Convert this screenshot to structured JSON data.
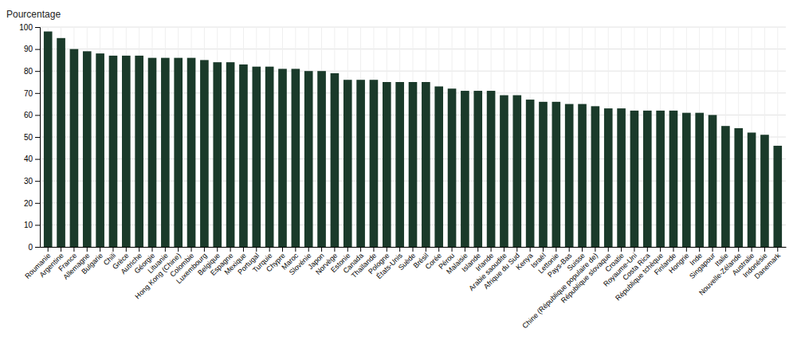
{
  "chart_data": {
    "type": "bar",
    "y_label": "Pourcentage",
    "categories": [
      "Roumanie",
      "Argentine",
      "France",
      "Allemagne",
      "Bulgarie",
      "Chili",
      "Grèce",
      "Autriche",
      "Géorgie",
      "Lituanie",
      "Hong Kong (Chine)",
      "Colombie",
      "Luxembourg",
      "Belgique",
      "Espagne",
      "Mexique",
      "Portugal",
      "Turquie",
      "Chypre",
      "Maroc",
      "Slovénie",
      "Japon",
      "Norvège",
      "Estonie",
      "Canada",
      "Thaïlande",
      "Pologne",
      "États-Unis",
      "Suède",
      "Brésil",
      "Corée",
      "Pérou",
      "Malaisie",
      "Islande",
      "Irlande",
      "Arabie saoudite",
      "Afrique du Sud",
      "Kenya",
      "Israël",
      "Lettonie",
      "Pays-Bas",
      "Suisse",
      "Chine (République populaire de)",
      "République slovaque",
      "Croatie",
      "Royaume-Uni",
      "Costa Rica",
      "République tchèque",
      "Finlande",
      "Hongrie",
      "Inde",
      "Singapour",
      "Italie",
      "Nouvelle-Zélande",
      "Australie",
      "Indonésie",
      "Danemark"
    ],
    "values": [
      98,
      95,
      90,
      89,
      88,
      87,
      87,
      87,
      86,
      86,
      86,
      86,
      85,
      84,
      84,
      83,
      82,
      82,
      81,
      81,
      80,
      80,
      79,
      76,
      76,
      76,
      75,
      75,
      75,
      75,
      73,
      72,
      71,
      71,
      71,
      69,
      69,
      67,
      66,
      66,
      65,
      65,
      64,
      63,
      63,
      62,
      62,
      62,
      62,
      61,
      61,
      60,
      55,
      54,
      52,
      51,
      46
    ],
    "color": "#1a3a2a",
    "ylim": [
      0,
      100
    ],
    "yticks": [
      0,
      10,
      20,
      30,
      40,
      50,
      60,
      70,
      80,
      90,
      100
    ],
    "grid": true
  }
}
